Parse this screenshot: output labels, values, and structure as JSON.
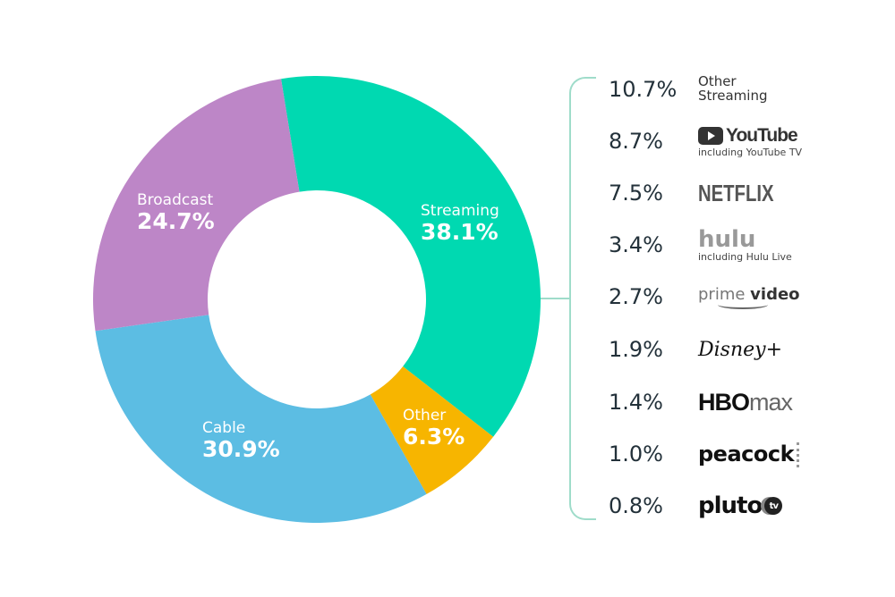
{
  "chart_data": {
    "type": "pie",
    "variant": "donut",
    "title": "",
    "categories": [
      "Streaming",
      "Other",
      "Cable",
      "Broadcast"
    ],
    "values": [
      38.1,
      6.3,
      30.9,
      24.7
    ],
    "colors": [
      "#00d9b1",
      "#f7b500",
      "#5cbde3",
      "#bd86c7"
    ],
    "labels": [
      {
        "name": "Streaming",
        "value": "38.1%"
      },
      {
        "name": "Other",
        "value": "6.3%"
      },
      {
        "name": "Cable",
        "value": "30.9%"
      },
      {
        "name": "Broadcast",
        "value": "24.7%"
      }
    ],
    "start_angle_deg": -9.2,
    "breakdown": {
      "parent": "Streaming",
      "items": [
        {
          "name": "Other Streaming",
          "value": 10.7,
          "label": "10.7%"
        },
        {
          "name": "YouTube",
          "sub": "including YouTube TV",
          "value": 8.7,
          "label": "8.7%"
        },
        {
          "name": "Netflix",
          "value": 7.5,
          "label": "7.5%"
        },
        {
          "name": "Hulu",
          "sub": "including Hulu Live",
          "value": 3.4,
          "label": "3.4%"
        },
        {
          "name": "Prime Video",
          "value": 2.7,
          "label": "2.7%"
        },
        {
          "name": "Disney+",
          "value": 1.9,
          "label": "1.9%"
        },
        {
          "name": "HBO Max",
          "value": 1.4,
          "label": "1.4%"
        },
        {
          "name": "Peacock",
          "value": 1.0,
          "label": "1.0%"
        },
        {
          "name": "Pluto TV",
          "value": 0.8,
          "label": "0.8%"
        }
      ]
    }
  },
  "legend": {
    "other_streaming": {
      "line1": "Other",
      "line2": "Streaming"
    },
    "youtube": {
      "logo": "YouTube",
      "sub": "including YouTube TV"
    },
    "netflix": {
      "logo": "NETFLIX"
    },
    "hulu": {
      "logo": "hulu",
      "sub": "including Hulu Live"
    },
    "prime": {
      "a": "prime",
      "b": "video"
    },
    "disney": {
      "logo": "Disney+"
    },
    "hbo": {
      "a": "HBO",
      "b": "max"
    },
    "peacock": {
      "logo": "peacock"
    },
    "pluto": {
      "logo": "pluto",
      "tv": "tv"
    }
  }
}
